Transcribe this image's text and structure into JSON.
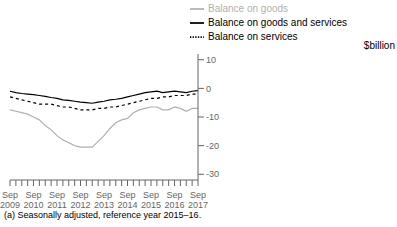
{
  "chart_data": {
    "type": "line",
    "ylabel": "$billion",
    "footnote": "(a) Seasonally adjusted, reference year 2015–16.",
    "categories": [
      "Sep\n2009",
      null,
      null,
      null,
      "Sep\n2010",
      null,
      null,
      null,
      "Sep\n2011",
      null,
      null,
      null,
      "Sep\n2012",
      null,
      null,
      null,
      "Sep\n2013",
      null,
      null,
      null,
      "Sep\n2014",
      null,
      null,
      null,
      "Sep\n2015",
      null,
      null,
      null,
      "Sep\n2016",
      null,
      null,
      null,
      "Sep\n2017"
    ],
    "series": [
      {
        "name": "Balance on goods and services",
        "color": "#000000",
        "line_style": "solid",
        "values": [
          -1.0,
          -1.5,
          -1.8,
          -2.0,
          -2.2,
          -2.5,
          -2.8,
          -3.2,
          -3.5,
          -4.0,
          -4.2,
          -4.5,
          -4.8,
          -5.0,
          -5.2,
          -4.8,
          -4.5,
          -4.0,
          -3.8,
          -3.5,
          -3.0,
          -2.5,
          -2.0,
          -1.5,
          -1.2,
          -1.0,
          -1.5,
          -1.2,
          -1.0,
          -1.2,
          -1.5,
          -1.0,
          -0.8
        ]
      },
      {
        "name": "Balance on goods",
        "color": "#b0b0b0",
        "line_style": "solid",
        "values": [
          -7.5,
          -8.0,
          -8.5,
          -9.0,
          -10.0,
          -11.0,
          -13.0,
          -14.5,
          -16.5,
          -18.0,
          -19.0,
          -20.0,
          -20.5,
          -20.5,
          -20.5,
          -18.5,
          -16.5,
          -14.0,
          -12.0,
          -11.0,
          -10.5,
          -8.5,
          -7.5,
          -7.0,
          -6.5,
          -6.5,
          -7.5,
          -7.5,
          -6.5,
          -7.0,
          -8.0,
          -7.0,
          -7.0
        ]
      },
      {
        "name": "Balance on services",
        "color": "#000000",
        "line_style": "dashed",
        "values": [
          -3.0,
          -3.5,
          -4.0,
          -4.5,
          -5.0,
          -5.5,
          -5.5,
          -5.5,
          -6.0,
          -6.5,
          -6.5,
          -7.0,
          -7.5,
          -7.5,
          -7.5,
          -7.0,
          -7.0,
          -6.5,
          -6.5,
          -6.0,
          -5.5,
          -5.0,
          -4.5,
          -4.0,
          -3.5,
          -3.5,
          -3.0,
          -3.0,
          -2.5,
          -2.5,
          -2.5,
          -2.0,
          -2.0
        ]
      }
    ],
    "ylim": [
      -32,
      12
    ],
    "yticks": [
      10,
      0,
      -10,
      -20,
      -30
    ],
    "legend": "upper right",
    "grid": false
  }
}
